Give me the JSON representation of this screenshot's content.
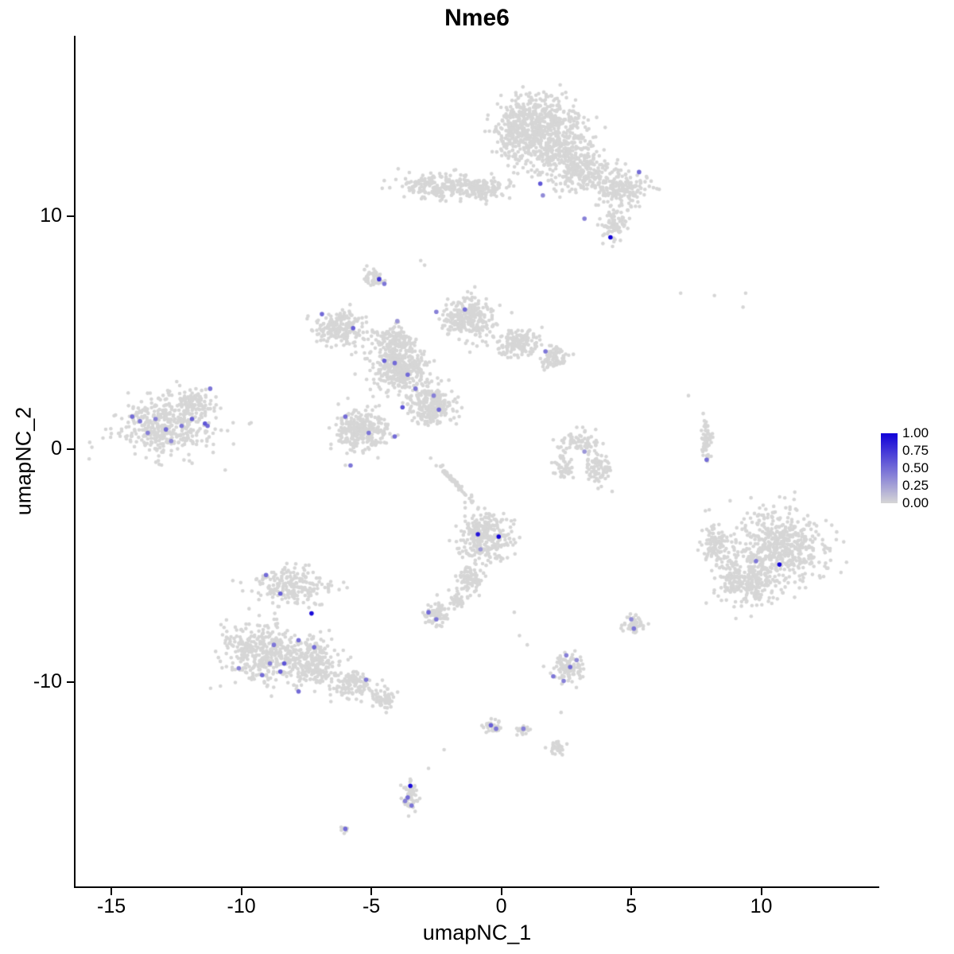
{
  "figure": {
    "background": "#ffffff"
  },
  "chart_data": {
    "type": "scatter",
    "title": "Nme6",
    "xlabel": "umapNC_1",
    "ylabel": "umapNC_2",
    "xlim": [
      -16.38,
      14.48
    ],
    "ylim": [
      -18.77,
      17.75
    ],
    "x_ticks": [
      -15,
      -10,
      -5,
      0,
      5,
      10
    ],
    "x_tick_labels": [
      "-15",
      "-10",
      "-5",
      "0",
      "5",
      "10"
    ],
    "y_ticks": [
      -10,
      0,
      10
    ],
    "y_tick_labels": [
      "-10",
      "0",
      "10"
    ],
    "grid": false,
    "legend_position": "right",
    "point_color_low": "#d6d6d6",
    "point_color_high": "#1000d8",
    "gray_point_radius": 2.3,
    "expressing_point_radius": 2.8,
    "seed": 42,
    "legend": {
      "labels": [
        "1.00",
        "0.75",
        "0.50",
        "0.25",
        "0.00"
      ],
      "values": [
        1.0,
        0.75,
        0.5,
        0.25,
        0.0
      ]
    },
    "clusters": [
      {
        "cx": 1.3,
        "cy": 14.2,
        "rx": 1.7,
        "ry": 1.0,
        "n": 380
      },
      {
        "cx": 2.1,
        "cy": 12.9,
        "rx": 1.4,
        "ry": 1.1,
        "n": 320
      },
      {
        "cx": 0.6,
        "cy": 13.3,
        "rx": 0.8,
        "ry": 1.2,
        "n": 150
      },
      {
        "cx": 3.2,
        "cy": 11.9,
        "rx": 1.2,
        "ry": 0.9,
        "n": 220
      },
      {
        "cx": 4.6,
        "cy": 11.1,
        "rx": 1.0,
        "ry": 0.8,
        "n": 170
      },
      {
        "cx": 4.4,
        "cy": 9.6,
        "rx": 0.5,
        "ry": 0.7,
        "n": 80
      },
      {
        "cx": -2.3,
        "cy": 11.3,
        "rx": 1.6,
        "ry": 0.55,
        "n": 220
      },
      {
        "cx": -0.7,
        "cy": 11.2,
        "rx": 0.9,
        "ry": 0.45,
        "n": 110
      },
      {
        "cx": -4.9,
        "cy": 7.35,
        "rx": 0.4,
        "ry": 0.35,
        "n": 45
      },
      {
        "cx": -6.2,
        "cy": 5.2,
        "rx": 1.0,
        "ry": 0.7,
        "n": 200
      },
      {
        "cx": -4.1,
        "cy": 4.6,
        "rx": 0.8,
        "ry": 0.6,
        "n": 160
      },
      {
        "cx": -1.3,
        "cy": 5.6,
        "rx": 1.0,
        "ry": 0.9,
        "n": 260
      },
      {
        "cx": 0.6,
        "cy": 4.6,
        "rx": 0.9,
        "ry": 0.55,
        "n": 150
      },
      {
        "cx": 2.0,
        "cy": 3.9,
        "rx": 0.55,
        "ry": 0.45,
        "n": 80
      },
      {
        "cx": -3.9,
        "cy": 3.4,
        "rx": 1.1,
        "ry": 0.85,
        "n": 340
      },
      {
        "cx": -2.7,
        "cy": 1.9,
        "rx": 0.85,
        "ry": 0.8,
        "n": 260
      },
      {
        "cx": -5.4,
        "cy": 0.8,
        "rx": 1.0,
        "ry": 0.9,
        "n": 300
      },
      {
        "cx": -1.8,
        "cy": -1.4,
        "rx": 1.2,
        "ry": 0.08,
        "rot": -50,
        "n": 60
      },
      {
        "cx": -12.9,
        "cy": 1.0,
        "rx": 1.9,
        "ry": 1.3,
        "n": 420
      },
      {
        "cx": -11.8,
        "cy": 2.0,
        "rx": 0.7,
        "ry": 0.5,
        "n": 80
      },
      {
        "cx": 3.0,
        "cy": 0.3,
        "rx": 0.9,
        "ry": 0.45,
        "n": 70
      },
      {
        "cx": 3.7,
        "cy": -0.8,
        "rx": 0.55,
        "ry": 0.7,
        "n": 80
      },
      {
        "cx": 2.4,
        "cy": -0.7,
        "rx": 0.35,
        "ry": 0.6,
        "n": 45
      },
      {
        "cx": 7.9,
        "cy": 0.3,
        "rx": 0.18,
        "ry": 1.0,
        "n": 55
      },
      {
        "cx": 10.8,
        "cy": -4.2,
        "rx": 1.7,
        "ry": 1.7,
        "n": 520
      },
      {
        "cx": 9.4,
        "cy": -5.6,
        "rx": 1.2,
        "ry": 1.1,
        "n": 260
      },
      {
        "cx": 8.3,
        "cy": -4.1,
        "rx": 0.6,
        "ry": 0.9,
        "n": 110
      },
      {
        "cx": -0.6,
        "cy": -3.8,
        "rx": 0.95,
        "ry": 1.1,
        "n": 300
      },
      {
        "cx": -1.2,
        "cy": -5.6,
        "rx": 0.45,
        "ry": 0.7,
        "n": 80
      },
      {
        "cx": -1.7,
        "cy": -6.5,
        "rx": 0.3,
        "ry": 0.3,
        "n": 40
      },
      {
        "cx": -2.5,
        "cy": -7.1,
        "rx": 0.5,
        "ry": 0.55,
        "n": 75
      },
      {
        "cx": -8.1,
        "cy": -5.9,
        "rx": 1.3,
        "ry": 0.8,
        "n": 210
      },
      {
        "cx": -9.3,
        "cy": -8.7,
        "rx": 1.4,
        "ry": 1.2,
        "n": 360
      },
      {
        "cx": -7.3,
        "cy": -9.2,
        "rx": 1.1,
        "ry": 1.0,
        "n": 260
      },
      {
        "cx": -5.7,
        "cy": -10.1,
        "rx": 0.9,
        "ry": 0.55,
        "n": 120
      },
      {
        "cx": -4.5,
        "cy": -10.7,
        "rx": 0.55,
        "ry": 0.4,
        "n": 60
      },
      {
        "cx": 2.6,
        "cy": -9.4,
        "rx": 0.6,
        "ry": 0.65,
        "n": 95
      },
      {
        "cx": 5.1,
        "cy": -7.5,
        "rx": 0.4,
        "ry": 0.45,
        "n": 50
      },
      {
        "cx": -0.35,
        "cy": -11.85,
        "rx": 0.35,
        "ry": 0.3,
        "n": 35
      },
      {
        "cx": 0.85,
        "cy": -12.05,
        "rx": 0.3,
        "ry": 0.22,
        "n": 22
      },
      {
        "cx": 2.1,
        "cy": -12.8,
        "rx": 0.35,
        "ry": 0.3,
        "n": 30
      },
      {
        "cx": -3.5,
        "cy": -14.9,
        "rx": 0.28,
        "ry": 0.75,
        "n": 60
      },
      {
        "cx": -6.0,
        "cy": -16.3,
        "rx": 0.2,
        "ry": 0.15,
        "n": 9
      }
    ],
    "stray_points": [
      [
        -3.1,
        8.1
      ],
      [
        -2.95,
        7.9
      ],
      [
        6.9,
        6.7
      ],
      [
        8.2,
        6.6
      ],
      [
        9.4,
        6.7
      ],
      [
        9.3,
        6.1
      ],
      [
        7.2,
        2.3
      ],
      [
        8.0,
        -2.6
      ],
      [
        0.5,
        -7.0
      ],
      [
        0.7,
        -8.0
      ],
      [
        1.0,
        -8.4
      ],
      [
        2.3,
        -11.3
      ],
      [
        -2.8,
        -13.7
      ],
      [
        -2.2,
        -12.9
      ]
    ],
    "expressing_cells": [
      {
        "x": 5.3,
        "y": 11.9,
        "v": 0.5
      },
      {
        "x": 1.5,
        "y": 11.4,
        "v": 0.6
      },
      {
        "x": 1.6,
        "y": 10.9,
        "v": 0.35
      },
      {
        "x": 4.2,
        "y": 9.1,
        "v": 1.0
      },
      {
        "x": 3.2,
        "y": 9.9,
        "v": 0.4
      },
      {
        "x": -4.7,
        "y": 7.3,
        "v": 0.75
      },
      {
        "x": -4.5,
        "y": 7.1,
        "v": 0.45
      },
      {
        "x": -6.9,
        "y": 5.8,
        "v": 0.5
      },
      {
        "x": -5.7,
        "y": 5.2,
        "v": 0.55
      },
      {
        "x": -4.0,
        "y": 5.5,
        "v": 0.3
      },
      {
        "x": -1.4,
        "y": 6.0,
        "v": 0.5
      },
      {
        "x": -2.5,
        "y": 5.9,
        "v": 0.4
      },
      {
        "x": 1.7,
        "y": 4.2,
        "v": 0.45
      },
      {
        "x": -4.5,
        "y": 3.8,
        "v": 0.55
      },
      {
        "x": -4.1,
        "y": 3.7,
        "v": 0.5
      },
      {
        "x": -3.6,
        "y": 3.2,
        "v": 0.5
      },
      {
        "x": -3.3,
        "y": 2.6,
        "v": 0.45
      },
      {
        "x": -2.6,
        "y": 2.3,
        "v": 0.4
      },
      {
        "x": -2.4,
        "y": 1.7,
        "v": 0.5
      },
      {
        "x": -3.8,
        "y": 1.8,
        "v": 0.6
      },
      {
        "x": -6.0,
        "y": 1.4,
        "v": 0.5
      },
      {
        "x": -5.1,
        "y": 0.7,
        "v": 0.45
      },
      {
        "x": -4.1,
        "y": 0.55,
        "v": 0.5
      },
      {
        "x": -5.8,
        "y": -0.7,
        "v": 0.45
      },
      {
        "x": -14.2,
        "y": 1.4,
        "v": 0.5
      },
      {
        "x": -13.9,
        "y": 1.2,
        "v": 0.45
      },
      {
        "x": -13.3,
        "y": 1.3,
        "v": 0.4
      },
      {
        "x": -12.9,
        "y": 0.85,
        "v": 0.5
      },
      {
        "x": -12.3,
        "y": 1.0,
        "v": 0.45
      },
      {
        "x": -11.9,
        "y": 1.3,
        "v": 0.55
      },
      {
        "x": -11.4,
        "y": 1.1,
        "v": 0.6
      },
      {
        "x": -11.3,
        "y": 1.0,
        "v": 0.5
      },
      {
        "x": -11.2,
        "y": 2.6,
        "v": 0.45
      },
      {
        "x": -12.7,
        "y": 0.35,
        "v": 0.35
      },
      {
        "x": -13.6,
        "y": 0.7,
        "v": 0.4
      },
      {
        "x": 3.2,
        "y": -0.1,
        "v": 0.3
      },
      {
        "x": 7.9,
        "y": -0.45,
        "v": 0.5
      },
      {
        "x": 10.7,
        "y": -4.95,
        "v": 1.0
      },
      {
        "x": 9.8,
        "y": -4.8,
        "v": 0.45
      },
      {
        "x": -0.9,
        "y": -3.65,
        "v": 0.9
      },
      {
        "x": -0.1,
        "y": -3.75,
        "v": 1.0
      },
      {
        "x": -0.8,
        "y": -4.3,
        "v": 0.3
      },
      {
        "x": -9.05,
        "y": -5.4,
        "v": 0.5
      },
      {
        "x": -8.5,
        "y": -6.2,
        "v": 0.55
      },
      {
        "x": -7.3,
        "y": -7.05,
        "v": 0.95
      },
      {
        "x": -7.8,
        "y": -8.2,
        "v": 0.5
      },
      {
        "x": -8.75,
        "y": -8.4,
        "v": 0.45
      },
      {
        "x": -8.35,
        "y": -9.2,
        "v": 0.6
      },
      {
        "x": -9.2,
        "y": -9.7,
        "v": 0.5
      },
      {
        "x": -8.5,
        "y": -9.55,
        "v": 0.55
      },
      {
        "x": -7.8,
        "y": -10.4,
        "v": 0.5
      },
      {
        "x": -8.9,
        "y": -9.2,
        "v": 0.4
      },
      {
        "x": -10.1,
        "y": -9.4,
        "v": 0.4
      },
      {
        "x": -7.2,
        "y": -8.5,
        "v": 0.5
      },
      {
        "x": -5.2,
        "y": -9.9,
        "v": 0.45
      },
      {
        "x": -2.8,
        "y": -7.0,
        "v": 0.5
      },
      {
        "x": -2.5,
        "y": -7.3,
        "v": 0.45
      },
      {
        "x": 2.5,
        "y": -8.85,
        "v": 0.4
      },
      {
        "x": 2.65,
        "y": -9.35,
        "v": 0.5
      },
      {
        "x": 2.0,
        "y": -9.75,
        "v": 0.45
      },
      {
        "x": 2.4,
        "y": -9.95,
        "v": 0.4
      },
      {
        "x": 2.9,
        "y": -9.05,
        "v": 0.35
      },
      {
        "x": 5.0,
        "y": -7.3,
        "v": 0.35
      },
      {
        "x": 5.1,
        "y": -7.7,
        "v": 0.45
      },
      {
        "x": -0.4,
        "y": -11.85,
        "v": 0.55
      },
      {
        "x": -0.2,
        "y": -12.0,
        "v": 0.45
      },
      {
        "x": 0.85,
        "y": -12.0,
        "v": 0.4
      },
      {
        "x": -3.5,
        "y": -14.45,
        "v": 0.95
      },
      {
        "x": -3.6,
        "y": -14.95,
        "v": 0.5
      },
      {
        "x": -3.45,
        "y": -15.3,
        "v": 0.45
      },
      {
        "x": -3.7,
        "y": -15.1,
        "v": 0.4
      },
      {
        "x": -6.0,
        "y": -16.3,
        "v": 0.5
      }
    ]
  }
}
